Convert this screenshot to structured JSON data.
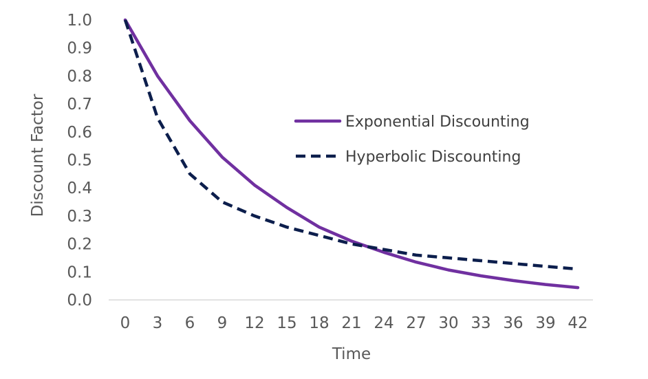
{
  "chart_data": {
    "type": "line",
    "title": "",
    "xlabel": "Time",
    "ylabel": "Discount Factor",
    "x": [
      0,
      3,
      6,
      9,
      12,
      15,
      18,
      21,
      24,
      27,
      30,
      33,
      36,
      39,
      42
    ],
    "x_tick_labels": [
      "0",
      "3",
      "6",
      "9",
      "12",
      "15",
      "18",
      "21",
      "24",
      "27",
      "30",
      "33",
      "36",
      "39",
      "42"
    ],
    "y_tick_labels": [
      "0.0",
      "0.1",
      "0.2",
      "0.3",
      "0.4",
      "0.5",
      "0.6",
      "0.7",
      "0.8",
      "0.9",
      "1.0"
    ],
    "xlim": [
      0,
      42
    ],
    "ylim": [
      0,
      1.0
    ],
    "grid": false,
    "legend_position": "right",
    "series": [
      {
        "name": "Exponential Discounting",
        "color": "#7030a0",
        "line_style": "solid",
        "values": [
          1.0,
          0.8,
          0.64,
          0.51,
          0.41,
          0.33,
          0.26,
          0.21,
          0.17,
          0.135,
          0.107,
          0.086,
          0.069,
          0.055,
          0.044
        ]
      },
      {
        "name": "Hyperbolic Discounting",
        "color": "#0c1e4c",
        "line_style": "dashed",
        "values": [
          1.0,
          0.65,
          0.45,
          0.35,
          0.3,
          0.26,
          0.23,
          0.2,
          0.18,
          0.16,
          0.15,
          0.14,
          0.13,
          0.12,
          0.11
        ]
      }
    ]
  }
}
